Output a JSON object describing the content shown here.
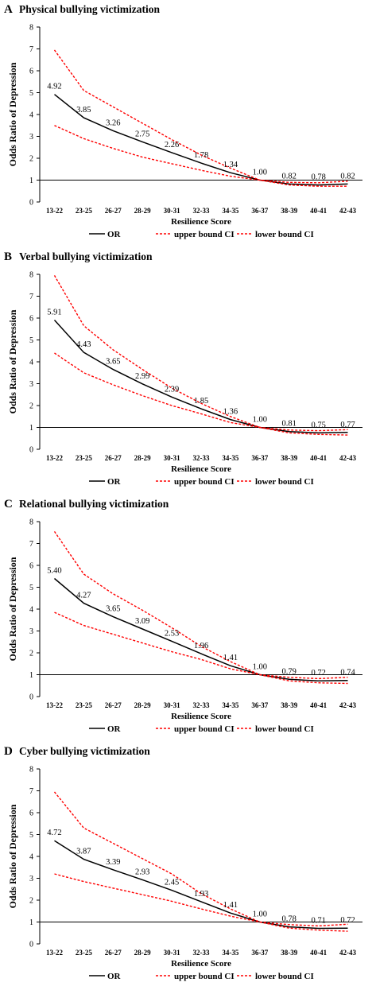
{
  "colors": {
    "or_line": "#000000",
    "ci_line": "#ff0000",
    "baseline": "#000000",
    "text": "#000000"
  },
  "chart_data": [
    {
      "type": "line",
      "panel_letter": "A",
      "title": "Physical bullying victimization",
      "xlabel": "Resilience Score",
      "ylabel": "Odds Ratio of Depression",
      "ylim": [
        0,
        8
      ],
      "yticks": [
        "0",
        "1",
        "2",
        "3",
        "4",
        "5",
        "6",
        "7",
        "8"
      ],
      "categories": [
        "13-22",
        "23-25",
        "26-27",
        "28-29",
        "30-31",
        "32-33",
        "34-35",
        "36-37",
        "38-39",
        "40-41",
        "42-43"
      ],
      "reference_line": 1,
      "grid": false,
      "legend": {
        "placement": "bottom",
        "entries": [
          "OR",
          "upper bound CI",
          "lower bound CI"
        ]
      },
      "series": [
        {
          "name": "OR",
          "style": "solid",
          "values": [
            4.92,
            3.85,
            3.26,
            2.75,
            2.26,
            1.78,
            1.34,
            1.0,
            0.82,
            0.78,
            0.82
          ],
          "labels": [
            "4.92",
            "3.85",
            "3.26",
            "2.75",
            "2.26",
            "1.78",
            "1.34",
            "1.00",
            "0.82",
            "0.78",
            "0.82"
          ]
        },
        {
          "name": "upper bound CI",
          "style": "dashed",
          "values": [
            6.95,
            5.1,
            4.35,
            3.6,
            2.85,
            2.15,
            1.55,
            1.0,
            0.9,
            0.88,
            0.95
          ]
        },
        {
          "name": "lower bound CI",
          "style": "dashed",
          "values": [
            3.5,
            2.9,
            2.45,
            2.05,
            1.75,
            1.45,
            1.18,
            1.0,
            0.78,
            0.72,
            0.72
          ]
        }
      ]
    },
    {
      "type": "line",
      "panel_letter": "B",
      "title": "Verbal bullying victimization",
      "xlabel": "Resilience Score",
      "ylabel": "Odds Ratio of Depression",
      "ylim": [
        0,
        8
      ],
      "yticks": [
        "0",
        "1",
        "2",
        "3",
        "4",
        "5",
        "6",
        "7",
        "8"
      ],
      "categories": [
        "13-22",
        "23-25",
        "26-27",
        "28-29",
        "30-31",
        "32-33",
        "34-35",
        "36-37",
        "38-39",
        "40-41",
        "42-43"
      ],
      "reference_line": 1,
      "grid": false,
      "legend": {
        "placement": "bottom",
        "entries": [
          "OR",
          "upper bound CI",
          "lower bound CI"
        ]
      },
      "series": [
        {
          "name": "OR",
          "style": "solid",
          "values": [
            5.91,
            4.43,
            3.65,
            2.99,
            2.39,
            1.85,
            1.36,
            1.0,
            0.81,
            0.75,
            0.77
          ],
          "labels": [
            "5.91",
            "4.43",
            "3.65",
            "2.99",
            "2.39",
            "1.85",
            "1.36",
            "1.00",
            "0.81",
            "0.75",
            "0.77"
          ]
        },
        {
          "name": "upper bound CI",
          "style": "dashed",
          "values": [
            7.95,
            5.65,
            4.55,
            3.65,
            2.8,
            2.1,
            1.5,
            1.0,
            0.88,
            0.85,
            0.9
          ]
        },
        {
          "name": "lower bound CI",
          "style": "dashed",
          "values": [
            4.4,
            3.5,
            2.95,
            2.45,
            2.0,
            1.62,
            1.22,
            1.0,
            0.75,
            0.68,
            0.65
          ]
        }
      ]
    },
    {
      "type": "line",
      "panel_letter": "C",
      "title": "Relational bullying victimization",
      "xlabel": "Resilience Score",
      "ylabel": "Odds Ratio of Depression",
      "ylim": [
        0,
        8
      ],
      "yticks": [
        "0",
        "1",
        "2",
        "3",
        "4",
        "5",
        "6",
        "7",
        "8"
      ],
      "categories": [
        "13-22",
        "23-25",
        "26-27",
        "28-29",
        "30-31",
        "32-33",
        "34-35",
        "36-37",
        "38-39",
        "40-41",
        "42-43"
      ],
      "reference_line": 1,
      "grid": false,
      "legend": {
        "placement": "bottom",
        "entries": [
          "OR",
          "upper bound CI",
          "lower bound CI"
        ]
      },
      "series": [
        {
          "name": "OR",
          "style": "solid",
          "values": [
            5.4,
            4.27,
            3.65,
            3.09,
            2.53,
            1.96,
            1.41,
            1.0,
            0.79,
            0.72,
            0.74
          ],
          "labels": [
            "5.40",
            "4.27",
            "3.65",
            "3.09",
            "2.53",
            "1.96",
            "1.41",
            "1.00",
            "0.79",
            "0.72",
            "0.74"
          ]
        },
        {
          "name": "upper bound CI",
          "style": "dashed",
          "values": [
            7.55,
            5.6,
            4.7,
            3.95,
            3.15,
            2.3,
            1.6,
            1.0,
            0.88,
            0.82,
            0.88
          ]
        },
        {
          "name": "lower bound CI",
          "style": "dashed",
          "values": [
            3.85,
            3.25,
            2.85,
            2.45,
            2.05,
            1.7,
            1.27,
            1.0,
            0.72,
            0.63,
            0.6
          ]
        }
      ]
    },
    {
      "type": "line",
      "panel_letter": "D",
      "title": "Cyber bullying victimization",
      "xlabel": "Resilience Score",
      "ylabel": "Odds Ratio of Depression",
      "ylim": [
        0,
        8
      ],
      "yticks": [
        "0",
        "1",
        "2",
        "3",
        "4",
        "5",
        "6",
        "7",
        "8"
      ],
      "categories": [
        "13-22",
        "23-25",
        "26-27",
        "28-29",
        "30-31",
        "32-33",
        "34-35",
        "36-37",
        "38-39",
        "40-41",
        "42-43"
      ],
      "reference_line": 1,
      "grid": false,
      "legend": {
        "placement": "bottom",
        "entries": [
          "OR",
          "upper bound CI",
          "lower bound CI"
        ]
      },
      "series": [
        {
          "name": "OR",
          "style": "solid",
          "values": [
            4.72,
            3.87,
            3.39,
            2.93,
            2.45,
            1.93,
            1.41,
            1.0,
            0.78,
            0.71,
            0.72
          ],
          "labels": [
            "4.72",
            "3.87",
            "3.39",
            "2.93",
            "2.45",
            "1.93",
            "1.41",
            "1.00",
            "0.78",
            "0.71",
            "0.72"
          ]
        },
        {
          "name": "upper bound CI",
          "style": "dashed",
          "values": [
            6.95,
            5.3,
            4.6,
            3.9,
            3.2,
            2.3,
            1.6,
            1.0,
            0.88,
            0.82,
            0.9
          ]
        },
        {
          "name": "lower bound CI",
          "style": "dashed",
          "values": [
            3.2,
            2.85,
            2.55,
            2.25,
            1.95,
            1.6,
            1.27,
            1.0,
            0.72,
            0.63,
            0.58
          ]
        }
      ]
    }
  ]
}
